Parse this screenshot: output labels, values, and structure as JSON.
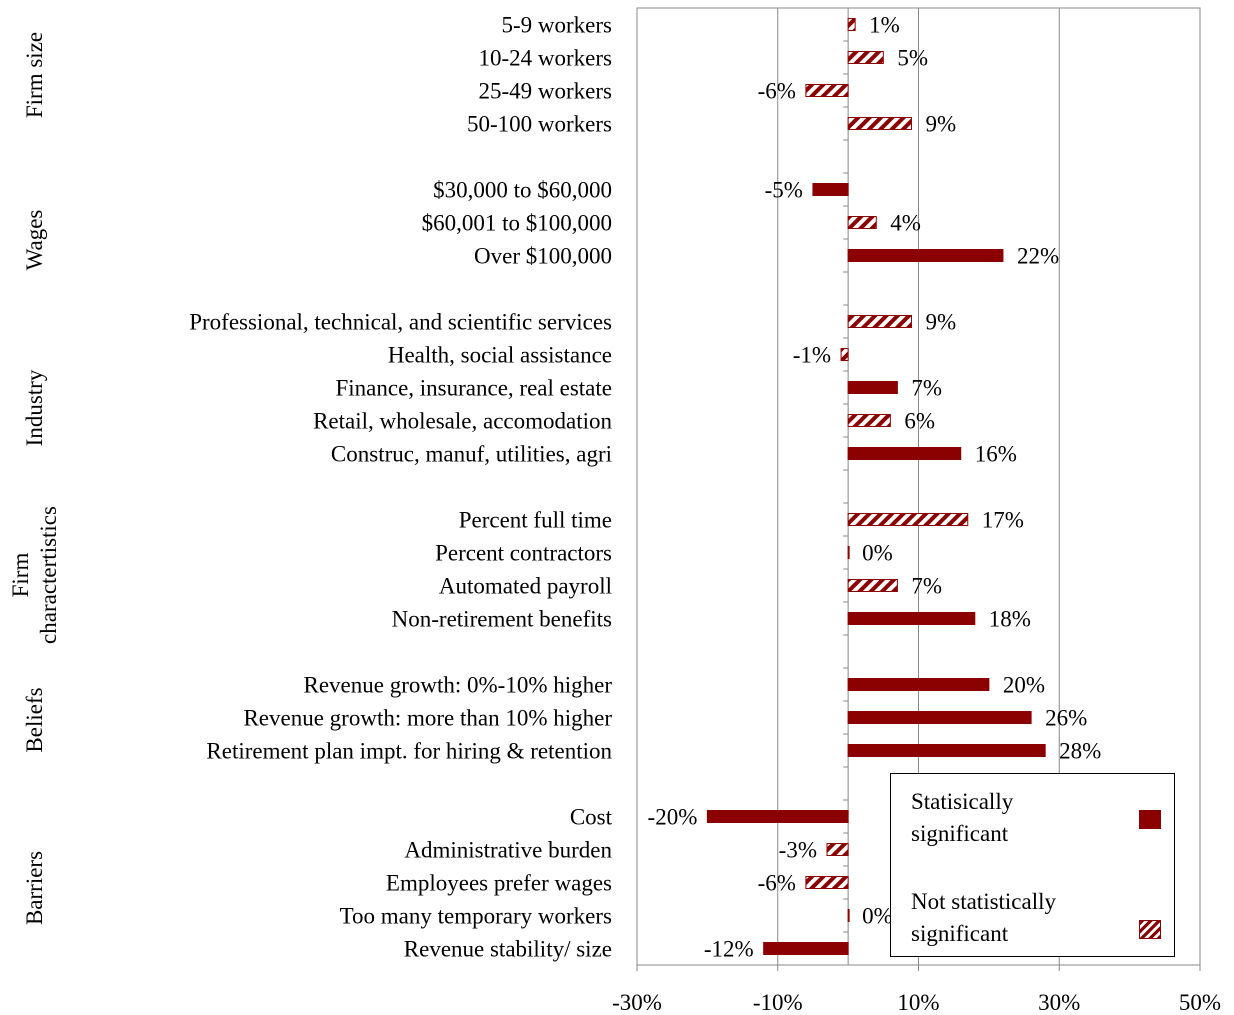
{
  "chart_data": {
    "type": "bar",
    "orientation": "horizontal",
    "categories": [
      "5-9 workers",
      "10-24 workers",
      "25-49 workers",
      "50-100 workers",
      null,
      "$30,000 to $60,000",
      "$60,001 to $100,000",
      "Over $100,000",
      null,
      "Professional, technical, and scientific services",
      "Health, social assistance",
      "Finance, insurance, real estate",
      "Retail, wholesale, accomodation",
      "Construc, manuf, utilities, agri",
      null,
      "Percent full time",
      "Percent contractors",
      "Automated payroll",
      "Non-retirement benefits",
      null,
      "Revenue growth: 0%-10% higher",
      "Revenue growth: more than 10% higher",
      "Retirement plan impt. for hiring & retention",
      null,
      "Cost",
      "Administrative burden",
      "Employees prefer wages",
      "Too many temporary workers",
      "Revenue stability/ size"
    ],
    "group_labels": [
      [
        "Firm size"
      ],
      [
        "Wages"
      ],
      [
        "Industry"
      ],
      [
        "Firm",
        "charactertistics"
      ],
      [
        "Beliefs"
      ],
      [
        "Barriers"
      ]
    ],
    "series": [
      {
        "name": "Statisically significant",
        "color": "#8b0000",
        "pattern": "solid",
        "values": [
          null,
          null,
          null,
          null,
          null,
          -5,
          null,
          22,
          null,
          null,
          null,
          7,
          null,
          16,
          null,
          null,
          null,
          null,
          18,
          null,
          20,
          26,
          28,
          null,
          -20,
          null,
          null,
          null,
          -12
        ],
        "value_labels": [
          null,
          null,
          null,
          null,
          null,
          "-5%",
          null,
          "22%",
          null,
          null,
          null,
          "7%",
          null,
          "16%",
          null,
          null,
          null,
          null,
          "18%",
          null,
          "20%",
          "26%",
          "28%",
          null,
          "-20%",
          null,
          null,
          null,
          "-12%"
        ]
      },
      {
        "name": "Not statistically significant",
        "color": "#8b0000",
        "pattern": "hatch",
        "values": [
          1,
          5,
          -6,
          9,
          null,
          null,
          4,
          null,
          null,
          9,
          -1,
          null,
          6,
          null,
          null,
          17,
          0,
          7,
          null,
          null,
          null,
          null,
          null,
          null,
          null,
          -3,
          -6,
          0,
          null
        ],
        "value_labels": [
          "1%",
          "5%",
          "-6%",
          "9%",
          null,
          null,
          "4%",
          null,
          null,
          "9%",
          "-1%",
          null,
          "6%",
          null,
          null,
          "17%",
          "0%",
          "7%",
          null,
          null,
          null,
          null,
          null,
          null,
          null,
          "-3%",
          "-6%",
          "0%",
          null
        ]
      }
    ],
    "xlim": [
      -30,
      50
    ],
    "xticks": [
      {
        "value": -30,
        "label": "-30%"
      },
      {
        "value": -10,
        "label": "-10%"
      },
      {
        "value": 10,
        "label": "10%"
      },
      {
        "value": 30,
        "label": "30%"
      },
      {
        "value": 50,
        "label": "50%"
      }
    ],
    "grid": true,
    "legend": "lower right"
  }
}
